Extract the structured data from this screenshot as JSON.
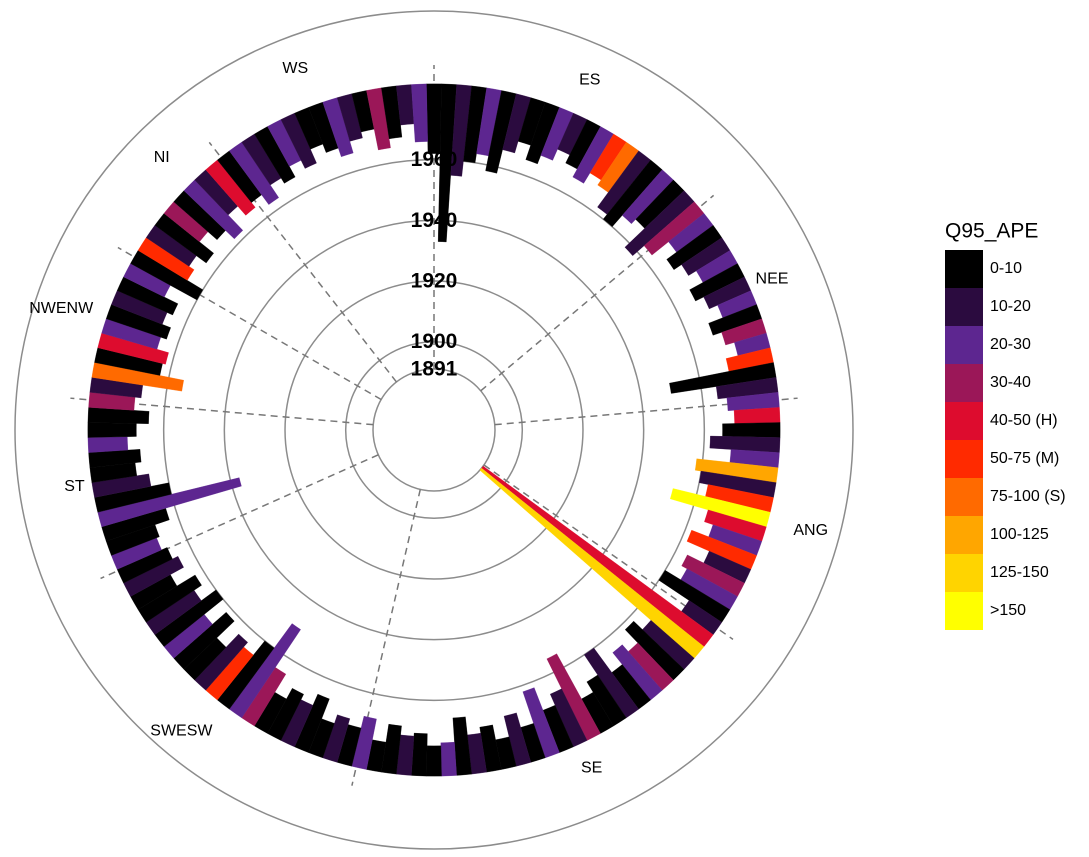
{
  "chart_data": {
    "type": "polar-bar",
    "rlim": [
      1891,
      2009
    ],
    "rticks": [
      1891,
      1900,
      1920,
      1940,
      1960
    ],
    "regions": [
      "WS",
      "ES",
      "NEE",
      "ANG",
      "SE",
      "SWESW",
      "ST",
      "NWENW",
      "NI"
    ],
    "end_year": 1985,
    "start": [
      1962,
      1933,
      1955,
      1960,
      1963,
      1958,
      1966,
      1970,
      1965,
      1968,
      1972,
      1969,
      1966,
      1970,
      1968,
      1962,
      1960,
      1965,
      1967,
      1958,
      1963,
      1970,
      1966,
      1969,
      1972,
      1967,
      1970,
      1973,
      1968,
      1971,
      1974,
      1970,
      1950,
      1965,
      1968,
      1970,
      1966,
      1962,
      1969,
      1958,
      1960,
      1963,
      1952,
      1965,
      1968,
      1962,
      1970,
      1964,
      1966,
      1960,
      1972,
      1891,
      1891,
      1966,
      1962,
      1968,
      1965,
      1970,
      1960,
      1968,
      1972,
      1955,
      1966,
      1970,
      1962,
      1973,
      1968,
      1975,
      1970,
      1972,
      1966,
      1974,
      1975,
      1971,
      1972,
      1969,
      1975,
      1968,
      1972,
      1970,
      1973,
      1966,
      1970,
      1968,
      1972,
      1965,
      1950,
      1960,
      1966,
      1964,
      1970,
      1962,
      1968,
      1960,
      1966,
      1963,
      1970,
      1965,
      1967,
      1969,
      1968,
      1963,
      1937,
      1960,
      1966,
      1970,
      1968,
      1972,
      1969,
      1965,
      1970,
      1968,
      1955,
      1963,
      1962,
      1966,
      1964,
      1967,
      1965,
      1970,
      1960,
      1966,
      1968,
      1964,
      1970,
      1966,
      1962,
      1969,
      1965,
      1967,
      1963,
      1968,
      1966,
      1970,
      1967,
      1972,
      1969,
      1966,
      1970,
      1972,
      1965,
      1968,
      1972,
      1966
    ],
    "category": [
      0,
      0,
      1,
      0,
      2,
      0,
      1,
      0,
      0,
      2,
      1,
      0,
      2,
      5,
      6,
      1,
      0,
      2,
      0,
      1,
      3,
      2,
      0,
      1,
      2,
      0,
      1,
      2,
      0,
      3,
      2,
      5,
      0,
      1,
      2,
      4,
      0,
      1,
      2,
      7,
      1,
      5,
      9,
      4,
      2,
      5,
      1,
      3,
      2,
      0,
      1,
      4,
      8,
      1,
      0,
      3,
      2,
      0,
      1,
      0,
      0,
      3,
      1,
      0,
      2,
      0,
      1,
      0,
      0,
      1,
      0,
      2,
      0,
      0,
      1,
      0,
      0,
      2,
      0,
      1,
      0,
      0,
      1,
      0,
      0,
      3,
      2,
      0,
      5,
      1,
      0,
      0,
      2,
      0,
      1,
      0,
      0,
      1,
      0,
      2,
      0,
      0,
      2,
      0,
      1,
      0,
      0,
      2,
      0,
      0,
      3,
      1,
      6,
      0,
      4,
      2,
      0,
      1,
      0,
      2,
      0,
      5,
      1,
      0,
      3,
      0,
      2,
      1,
      4,
      0,
      2,
      1,
      0,
      2,
      1,
      0,
      0,
      2,
      1,
      0,
      3,
      0,
      1,
      2
    ],
    "legend": {
      "title": "Q95_APE",
      "labels": [
        "0-10",
        "10-20",
        "20-30",
        "30-40",
        "40-50 (H)",
        "50-75 (M)",
        "75-100 (S)",
        "100-125",
        "125-150",
        ">150"
      ],
      "colors": [
        "#000000",
        "#2b0b3f",
        "#5d2690",
        "#9b1758",
        "#dd0c2e",
        "#ff2a00",
        "#ff6a00",
        "#ffa600",
        "#ffd400",
        "#ffff00"
      ]
    }
  }
}
